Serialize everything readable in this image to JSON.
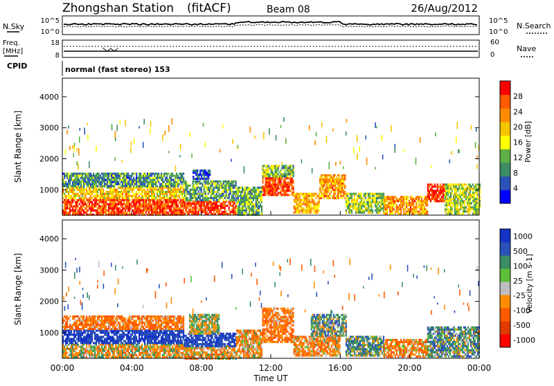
{
  "header": {
    "station": "Zhongshan Station",
    "mode": "(fitACF)",
    "beam": "Beam 08",
    "date": "26/Aug/2012"
  },
  "strips": {
    "nsky_label": "N.Sky",
    "nsearch_label": "N.Search",
    "freq_label_line1": "Freq.",
    "freq_label_line2": "[MHz]",
    "nave_label": "Nave",
    "cpid_label": "CPID",
    "cpid_text": "normal (fast stereo) 153",
    "noise_left_ticks": [
      "10^5",
      "10^0"
    ],
    "noise_right_ticks": [
      "10^5",
      "10^0"
    ],
    "freq_left_ticks": [
      "18",
      "8"
    ],
    "freq_right_ticks": [
      "60",
      "0"
    ]
  },
  "time_axis": {
    "label": "Time UT",
    "ticks": [
      "00:00",
      "04:00",
      "08:00",
      "12:00",
      "16:00",
      "20:00",
      "00:00"
    ]
  },
  "colors": {
    "power_scale": [
      "#0000ff",
      "#2a52b8",
      "#3c8c64",
      "#5cb046",
      "#ffff00",
      "#f5c400",
      "#ff8c00",
      "#ff5a00",
      "#ff0000"
    ],
    "velocity_scale": [
      "#1432c8",
      "#2a52b8",
      "#3c8c64",
      "#5fbf3b",
      "#bebebe",
      "#ff8c00",
      "#ff5a00",
      "#e03a00",
      "#ff0000"
    ]
  },
  "chart_data": [
    {
      "type": "heatmap",
      "name": "power",
      "ylabel": "Slant Range [km]",
      "yticks": [
        "1000",
        "2000",
        "3000",
        "4000"
      ],
      "ylim": [
        180,
        4600
      ],
      "xlim_hours": [
        0,
        24
      ],
      "colorbar_label": "Power [dB]",
      "colorbar_ticks": [
        "4",
        "8",
        "12",
        "16",
        "20",
        "24",
        "28"
      ],
      "colorbar_range": [
        0,
        30
      ],
      "regions": [
        {
          "x0": 0.0,
          "x1": 7.0,
          "y0": 200,
          "y1": 700,
          "v": 26
        },
        {
          "x0": 0.0,
          "x1": 7.0,
          "y0": 700,
          "y1": 1100,
          "v": 18
        },
        {
          "x0": 0.0,
          "x1": 7.0,
          "y0": 1100,
          "y1": 1550,
          "v": 9
        },
        {
          "x0": 7.0,
          "x1": 10.0,
          "y0": 200,
          "y1": 650,
          "v": 26
        },
        {
          "x0": 7.0,
          "x1": 10.0,
          "y0": 650,
          "y1": 1300,
          "v": 10
        },
        {
          "x0": 7.5,
          "x1": 8.5,
          "y0": 1350,
          "y1": 1650,
          "v": 4
        },
        {
          "x0": 10.0,
          "x1": 11.5,
          "y0": 200,
          "y1": 1100,
          "v": 11
        },
        {
          "x0": 11.5,
          "x1": 13.3,
          "y0": 800,
          "y1": 1400,
          "v": 26
        },
        {
          "x0": 11.5,
          "x1": 13.3,
          "y0": 1400,
          "y1": 1800,
          "v": 12
        },
        {
          "x0": 13.3,
          "x1": 14.8,
          "y0": 250,
          "y1": 900,
          "v": 20
        },
        {
          "x0": 14.8,
          "x1": 16.3,
          "y0": 700,
          "y1": 1500,
          "v": 21
        },
        {
          "x0": 16.3,
          "x1": 18.5,
          "y0": 250,
          "y1": 900,
          "v": 13
        },
        {
          "x0": 18.5,
          "x1": 21.0,
          "y0": 250,
          "y1": 800,
          "v": 21
        },
        {
          "x0": 21.0,
          "x1": 22.0,
          "y0": 600,
          "y1": 1200,
          "v": 27
        },
        {
          "x0": 22.0,
          "x1": 24.0,
          "y0": 250,
          "y1": 1200,
          "v": 14
        }
      ]
    },
    {
      "type": "heatmap",
      "name": "velocity",
      "ylabel": "Slant Range [km]",
      "yticks": [
        "1000",
        "2000",
        "3000",
        "4000"
      ],
      "ylim": [
        180,
        4600
      ],
      "xlim_hours": [
        0,
        24
      ],
      "colorbar_label": "Velocity [m s-1]",
      "colorbar_ticks": [
        "1000",
        "500",
        "100",
        "25",
        "-25",
        "-100",
        "-500",
        "-1000"
      ],
      "colorbar_range": [
        -1200,
        1200
      ],
      "regions": [
        {
          "x0": 0.0,
          "x1": 7.0,
          "y0": 200,
          "y1": 650,
          "v": -100
        },
        {
          "x0": 0.0,
          "x1": 7.0,
          "y0": 650,
          "y1": 1100,
          "v": 800
        },
        {
          "x0": 0.0,
          "x1": 7.0,
          "y0": 1100,
          "y1": 1550,
          "v": -300
        },
        {
          "x0": 7.0,
          "x1": 10.0,
          "y0": 200,
          "y1": 600,
          "v": -150
        },
        {
          "x0": 7.0,
          "x1": 10.0,
          "y0": 600,
          "y1": 1000,
          "v": 700
        },
        {
          "x0": 7.3,
          "x1": 9.0,
          "y0": 1000,
          "y1": 1600,
          "v": 0
        },
        {
          "x0": 10.0,
          "x1": 11.5,
          "y0": 200,
          "y1": 1100,
          "v": -200
        },
        {
          "x0": 11.5,
          "x1": 13.3,
          "y0": 700,
          "y1": 1400,
          "v": -350
        },
        {
          "x0": 11.5,
          "x1": 13.3,
          "y0": 1400,
          "y1": 1800,
          "v": -300
        },
        {
          "x0": 13.3,
          "x1": 16.0,
          "y0": 250,
          "y1": 900,
          "v": -200
        },
        {
          "x0": 14.3,
          "x1": 16.3,
          "y0": 900,
          "y1": 1600,
          "v": 150
        },
        {
          "x0": 16.3,
          "x1": 18.5,
          "y0": 250,
          "y1": 900,
          "v": 150
        },
        {
          "x0": 18.5,
          "x1": 21.0,
          "y0": 250,
          "y1": 800,
          "v": -250
        },
        {
          "x0": 21.0,
          "x1": 24.0,
          "y0": 250,
          "y1": 1200,
          "v": 150
        }
      ]
    }
  ]
}
